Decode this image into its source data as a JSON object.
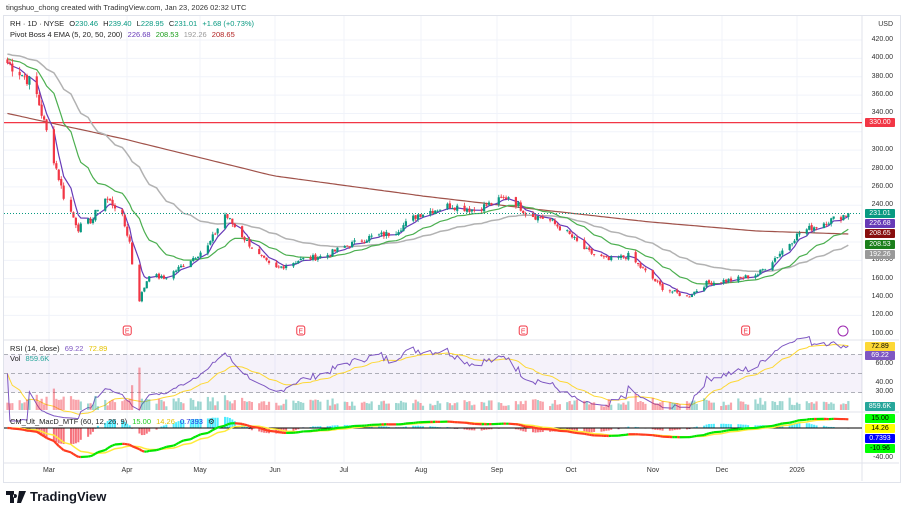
{
  "credit": "tingshuo_chong created with TradingView.com, Jan 23, 2026 02:32 UTC",
  "symbol": {
    "name": "RH · 1D · NYSE",
    "open_label": "O",
    "open": "230.46",
    "high_label": "H",
    "high": "239.40",
    "low_label": "L",
    "low": "228.95",
    "close_label": "C",
    "close": "231.01",
    "change": "+1.68 (+0.73%)"
  },
  "indicator": {
    "name": "Pivot Boss 4 EMA (5, 20, 50, 200)",
    "v1": "226.68",
    "v2": "208.53",
    "v3": "192.26",
    "v4": "208.65"
  },
  "rsi": {
    "name": "RSI (14, close)",
    "value": "69.22",
    "ma": "72.89"
  },
  "vol": {
    "name": "Vol",
    "value": "859.6K"
  },
  "macd": {
    "name": "CM_Ult_MacD_MTF (60, 12, 26, 9)",
    "v1": "15.00",
    "v2": "14.26",
    "v3": "0.7393",
    "icon": "settings-icon"
  },
  "currency": "USD",
  "price_ticks": [
    "420.00",
    "400.00",
    "380.00",
    "360.00",
    "340.00",
    "300.00",
    "280.00",
    "260.00",
    "240.00",
    "180.00",
    "160.00",
    "140.00",
    "120.00",
    "100.00"
  ],
  "rsi_ticks": [
    "60.00",
    "40.00",
    "30.00"
  ],
  "macd_ticks": [
    "-40.00"
  ],
  "tags": [
    {
      "text": "330.00",
      "color": "#f23645"
    },
    {
      "text": "231.01",
      "color": "#089981"
    },
    {
      "text": "226.68",
      "color": "#673ab7"
    },
    {
      "text": "208.65",
      "color": "#880e0e"
    },
    {
      "text": "208.53",
      "color": "#1b7f1b"
    },
    {
      "text": "192.26",
      "color": "#999999"
    },
    {
      "text": "72.89",
      "color": "#fdd835"
    },
    {
      "text": "69.22",
      "color": "#7e57c2"
    },
    {
      "text": "859.6K",
      "color": "#26a69a"
    },
    {
      "text": "15.00",
      "color": "#00ff00"
    },
    {
      "text": "14.26",
      "color": "#ffff00"
    },
    {
      "text": "0.7393",
      "color": "#0000ff"
    },
    {
      "text": "-10.96",
      "color": "#00ff00"
    }
  ],
  "months": [
    "Mar",
    "Apr",
    "May",
    "Jun",
    "Jul",
    "Aug",
    "Sep",
    "Oct",
    "Nov",
    "Dec",
    "2026"
  ],
  "brand": "TradingView",
  "earnings_marker": "E",
  "colors": {
    "up": "#089981",
    "down": "#f23645",
    "ema5": "#673ab7",
    "ema20": "#4caf50",
    "ema50": "#b2b2b2",
    "ema200": "#a0524a",
    "resistance": "#f23645"
  },
  "chart_data": {
    "type": "candlestick",
    "ylim": [
      120,
      420
    ],
    "resistance": 330,
    "close_path": [
      [
        "2025-02-12",
        395
      ],
      [
        "2025-02-17",
        385
      ],
      [
        "2025-02-23",
        370
      ],
      [
        "2025-02-27",
        330
      ],
      [
        "2025-03-03",
        290
      ],
      [
        "2025-03-07",
        250
      ],
      [
        "2025-03-13",
        215
      ],
      [
        "2025-03-19",
        225
      ],
      [
        "2025-03-23",
        250
      ],
      [
        "2025-03-30",
        235
      ],
      [
        "2025-04-03",
        200
      ],
      [
        "2025-04-06",
        130
      ],
      [
        "2025-04-11",
        165
      ],
      [
        "2025-04-17",
        160
      ],
      [
        "2025-04-25",
        175
      ],
      [
        "2025-05-05",
        195
      ],
      [
        "2025-05-12",
        230
      ],
      [
        "2025-05-18",
        210
      ],
      [
        "2025-05-26",
        185
      ],
      [
        "2025-06-01",
        170
      ],
      [
        "2025-06-11",
        180
      ],
      [
        "2025-06-22",
        185
      ],
      [
        "2025-06-30",
        195
      ],
      [
        "2025-07-10",
        205
      ],
      [
        "2025-07-20",
        210
      ],
      [
        "2025-07-30",
        230
      ],
      [
        "2025-08-12",
        240
      ],
      [
        "2025-08-22",
        235
      ],
      [
        "2025-09-01",
        245
      ],
      [
        "2025-09-05",
        250
      ],
      [
        "2025-09-13",
        230
      ],
      [
        "2025-09-21",
        225
      ],
      [
        "2025-09-29",
        210
      ],
      [
        "2025-10-07",
        190
      ],
      [
        "2025-10-16",
        180
      ],
      [
        "2025-10-24",
        185
      ],
      [
        "2025-11-01",
        165
      ],
      [
        "2025-11-07",
        150
      ],
      [
        "2025-11-17",
        140
      ],
      [
        "2025-11-25",
        155
      ],
      [
        "2025-12-08",
        160
      ],
      [
        "2025-12-16",
        165
      ],
      [
        "2025-12-24",
        185
      ],
      [
        "2026-01-02",
        210
      ],
      [
        "2026-01-11",
        220
      ],
      [
        "2026-01-19",
        228
      ],
      [
        "2026-01-22",
        231.01
      ]
    ],
    "ema200_path": [
      [
        "2025-02-12",
        340
      ],
      [
        "2025-04-01",
        312
      ],
      [
        "2025-06-01",
        272
      ],
      [
        "2025-08-01",
        250
      ],
      [
        "2025-09-15",
        236
      ],
      [
        "2025-11-01",
        222
      ],
      [
        "2025-12-15",
        212
      ],
      [
        "2026-01-22",
        208.65
      ]
    ],
    "earnings_dates": [
      "2025-04-02",
      "2025-06-12",
      "2025-09-11",
      "2025-12-11"
    ]
  }
}
